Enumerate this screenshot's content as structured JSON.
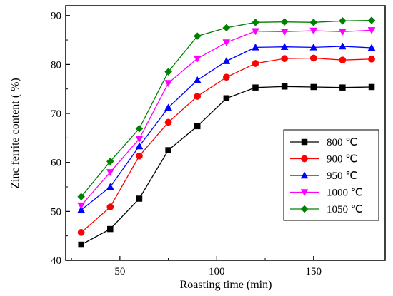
{
  "chart_data": {
    "type": "line",
    "xlabel": "Roasting time (min)",
    "ylabel": "Zinc ferrite content ( %)",
    "xlim": [
      22,
      187
    ],
    "ylim": [
      40,
      92
    ],
    "xticks": [
      50,
      100,
      150
    ],
    "yticks": [
      40,
      50,
      60,
      70,
      80,
      90
    ],
    "x": [
      30,
      45,
      60,
      75,
      90,
      105,
      120,
      135,
      150,
      165,
      180
    ],
    "grid": false,
    "legend": "right",
    "series": [
      {
        "name": "800 ℃",
        "color": "#000000",
        "marker": "square",
        "values": [
          43.2,
          46.4,
          52.6,
          62.5,
          67.4,
          73.1,
          75.3,
          75.5,
          75.4,
          75.3,
          75.4
        ]
      },
      {
        "name": "900 ℃",
        "color": "#ff0000",
        "marker": "circle",
        "values": [
          45.7,
          50.9,
          61.3,
          68.2,
          73.5,
          77.4,
          80.2,
          81.2,
          81.3,
          80.9,
          81.1
        ]
      },
      {
        "name": "950 ℃",
        "color": "#0000ff",
        "marker": "triangle-up",
        "values": [
          50.3,
          55.0,
          63.3,
          71.2,
          76.8,
          80.7,
          83.5,
          83.6,
          83.5,
          83.7,
          83.4
        ]
      },
      {
        "name": "1000 ℃",
        "color": "#ff00ff",
        "marker": "triangle-down",
        "values": [
          51.2,
          58.0,
          64.8,
          76.2,
          81.2,
          84.5,
          86.8,
          86.7,
          86.9,
          86.7,
          87.0
        ]
      },
      {
        "name": "1050 ℃",
        "color": "#008000",
        "marker": "diamond",
        "values": [
          53.0,
          60.2,
          66.9,
          78.5,
          85.8,
          87.5,
          88.6,
          88.7,
          88.6,
          88.9,
          89.0
        ]
      }
    ]
  }
}
